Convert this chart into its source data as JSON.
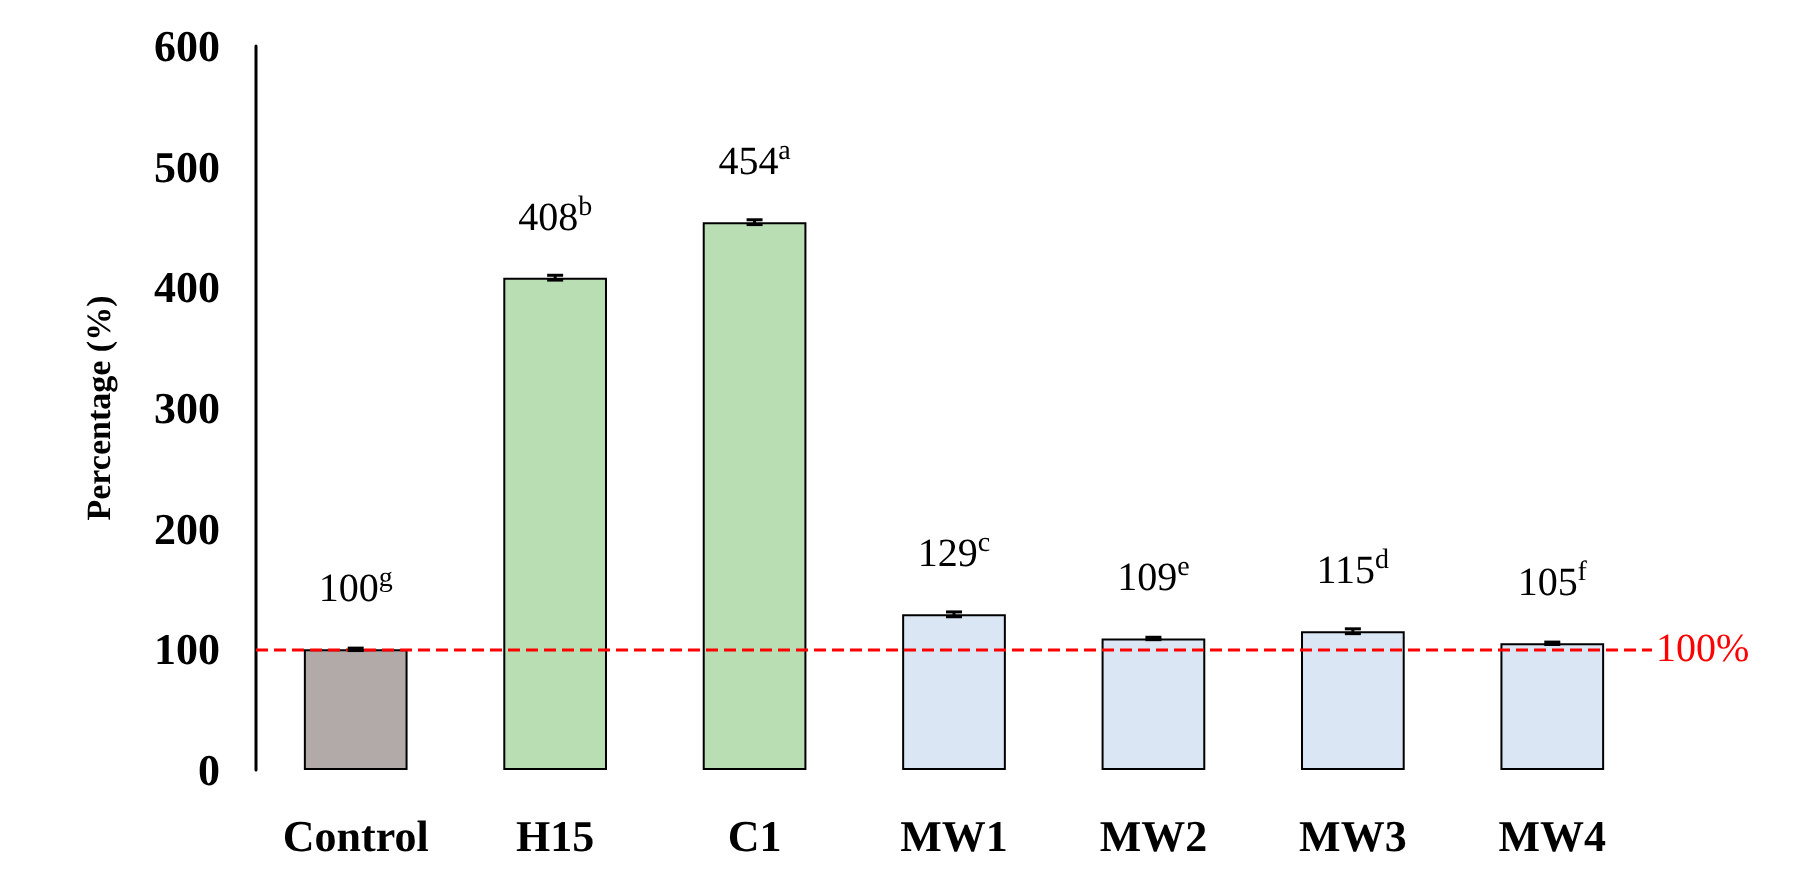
{
  "chart_data": {
    "type": "bar",
    "ylabel": "Percentage (%)",
    "categories": [
      "Control",
      "H15",
      "C1",
      "MW1",
      "MW2",
      "MW3",
      "MW4"
    ],
    "values": [
      100,
      408,
      454,
      129,
      109,
      115,
      105
    ],
    "colors": [
      "#b2a9a9",
      "#b9deb4",
      "#b9deb4",
      "#dbe6f4",
      "#dbe6f4",
      "#dbe6f4",
      "#dbe6f4"
    ],
    "errors": [
      1,
      2,
      2,
      2,
      1,
      2,
      1
    ],
    "value_labels": [
      "100$^{g}$",
      "408$^{b}$",
      "454$^{a}$",
      "129$^{c}$",
      "109$^{e}$",
      "115$^{d}$",
      "105$^{f}$"
    ],
    "ylim": [
      0,
      600
    ],
    "yticks": [
      0,
      100,
      200,
      300,
      400,
      500,
      600
    ],
    "grid": false,
    "ref_lines": [
      {
        "axis": "y",
        "value": 100,
        "label": "100%",
        "color": "#ff0000",
        "line_style": "dashed"
      }
    ]
  }
}
